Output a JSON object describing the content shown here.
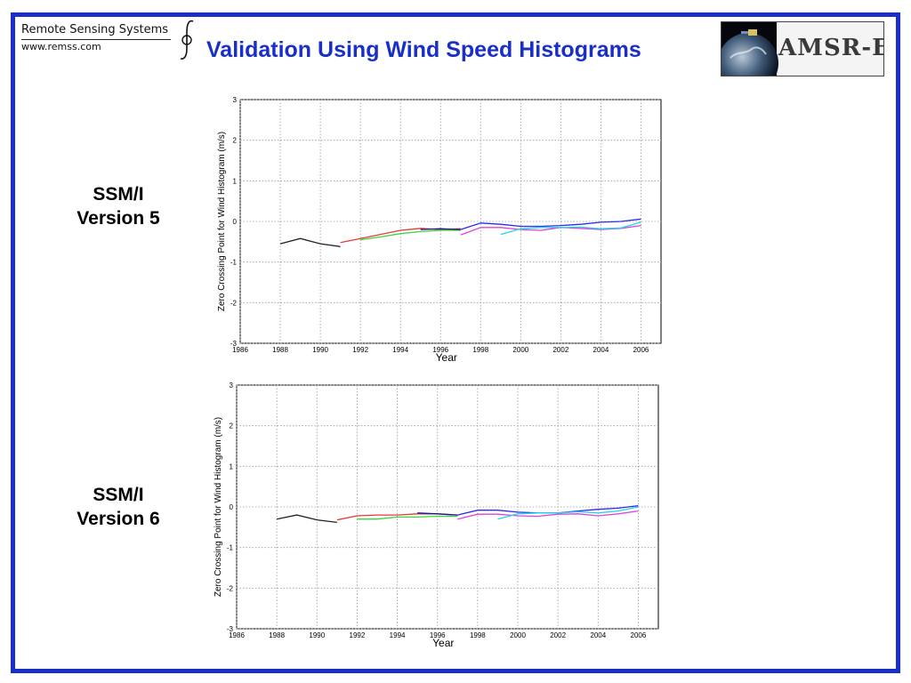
{
  "header": {
    "org_name": "Remote Sensing Systems",
    "org_url": "www.remss.com",
    "title": "Validation Using Wind Speed Histograms",
    "mission_logo_text": "AMSR-E"
  },
  "panels": [
    {
      "label_line1": "SSM/I",
      "label_line2": "Version 5"
    },
    {
      "label_line1": "SSM/I",
      "label_line2": "Version 6"
    }
  ],
  "colors": {
    "frame": "#1a2fc8",
    "title": "#1a2fc8",
    "series_black": "#222222",
    "series_red": "#e23a3a",
    "series_green": "#3ad63a",
    "series_navy": "#1a1a90",
    "series_blue": "#2a2af0",
    "series_magenta": "#e040e0",
    "series_cyan": "#20d8e8"
  },
  "chart_data": [
    {
      "type": "line",
      "title": "",
      "xlabel": "Year",
      "ylabel": "Zero Crossing Point for Wind Histogram (m/s)",
      "xlim": [
        1986,
        2007
      ],
      "ylim": [
        -3,
        3
      ],
      "xticks": [
        "1986",
        "1988",
        "1990",
        "1992",
        "1994",
        "1996",
        "1998",
        "2000",
        "2002",
        "2004",
        "2006"
      ],
      "yticks": [
        "-3",
        "-2",
        "-1",
        "0",
        "1",
        "2",
        "3"
      ],
      "grid": true,
      "series": [
        {
          "color": "#222222",
          "x": [
            1988,
            1989,
            1990,
            1991
          ],
          "y": [
            -0.55,
            -0.42,
            -0.55,
            -0.62
          ]
        },
        {
          "color": "#e23a3a",
          "x": [
            1991,
            1992,
            1993,
            1994,
            1995,
            1996,
            1997
          ],
          "y": [
            -0.52,
            -0.42,
            -0.32,
            -0.22,
            -0.17,
            -0.2,
            -0.18
          ]
        },
        {
          "color": "#3ad63a",
          "x": [
            1992,
            1993,
            1994,
            1995,
            1996,
            1997
          ],
          "y": [
            -0.45,
            -0.38,
            -0.3,
            -0.25,
            -0.22,
            -0.22
          ]
        },
        {
          "color": "#1a1a90",
          "x": [
            1995,
            1996,
            1997
          ],
          "y": [
            -0.2,
            -0.18,
            -0.2
          ]
        },
        {
          "color": "#2a2af0",
          "x": [
            1997,
            1998,
            1999,
            2000,
            2001,
            2002,
            2003,
            2004,
            2005,
            2006
          ],
          "y": [
            -0.2,
            -0.04,
            -0.07,
            -0.12,
            -0.12,
            -0.1,
            -0.07,
            -0.02,
            0.0,
            0.06
          ]
        },
        {
          "color": "#e040e0",
          "x": [
            1997,
            1998,
            1999,
            2000,
            2001,
            2002,
            2003,
            2004,
            2005,
            2006
          ],
          "y": [
            -0.33,
            -0.15,
            -0.15,
            -0.2,
            -0.22,
            -0.15,
            -0.17,
            -0.2,
            -0.17,
            -0.1
          ]
        },
        {
          "color": "#20d8e8",
          "x": [
            1999,
            2000,
            2001,
            2002,
            2003,
            2004,
            2005,
            2006
          ],
          "y": [
            -0.32,
            -0.18,
            -0.15,
            -0.15,
            -0.14,
            -0.18,
            -0.16,
            -0.02
          ]
        }
      ]
    },
    {
      "type": "line",
      "title": "",
      "xlabel": "Year",
      "ylabel": "Zero Crossing Point for Wind Histogram (m/s)",
      "xlim": [
        1986,
        2007
      ],
      "ylim": [
        -3,
        3
      ],
      "xticks": [
        "1986",
        "1988",
        "1990",
        "1992",
        "1994",
        "1996",
        "1998",
        "2000",
        "2002",
        "2004",
        "2006"
      ],
      "yticks": [
        "-3",
        "-2",
        "-1",
        "0",
        "1",
        "2",
        "3"
      ],
      "grid": true,
      "series": [
        {
          "color": "#222222",
          "x": [
            1988,
            1989,
            1990,
            1991
          ],
          "y": [
            -0.3,
            -0.2,
            -0.32,
            -0.38
          ]
        },
        {
          "color": "#e23a3a",
          "x": [
            1991,
            1992,
            1993,
            1994,
            1995,
            1996,
            1997
          ],
          "y": [
            -0.32,
            -0.22,
            -0.2,
            -0.2,
            -0.17,
            -0.17,
            -0.2
          ]
        },
        {
          "color": "#3ad63a",
          "x": [
            1992,
            1993,
            1994,
            1995,
            1996,
            1997
          ],
          "y": [
            -0.3,
            -0.3,
            -0.25,
            -0.25,
            -0.23,
            -0.23
          ]
        },
        {
          "color": "#1a1a90",
          "x": [
            1995,
            1996,
            1997
          ],
          "y": [
            -0.15,
            -0.17,
            -0.2
          ]
        },
        {
          "color": "#2a2af0",
          "x": [
            1997,
            1998,
            1999,
            2000,
            2001,
            2002,
            2003,
            2004,
            2005,
            2006
          ],
          "y": [
            -0.2,
            -0.08,
            -0.08,
            -0.13,
            -0.15,
            -0.15,
            -0.1,
            -0.06,
            -0.03,
            0.03
          ]
        },
        {
          "color": "#e040e0",
          "x": [
            1997,
            1998,
            1999,
            2000,
            2001,
            2002,
            2003,
            2004,
            2005,
            2006
          ],
          "y": [
            -0.3,
            -0.18,
            -0.18,
            -0.22,
            -0.23,
            -0.18,
            -0.17,
            -0.22,
            -0.17,
            -0.1
          ]
        },
        {
          "color": "#20d8e8",
          "x": [
            1999,
            2000,
            2001,
            2002,
            2003,
            2004,
            2005,
            2006
          ],
          "y": [
            -0.3,
            -0.17,
            -0.15,
            -0.15,
            -0.12,
            -0.15,
            -0.1,
            0.0
          ]
        }
      ]
    }
  ]
}
